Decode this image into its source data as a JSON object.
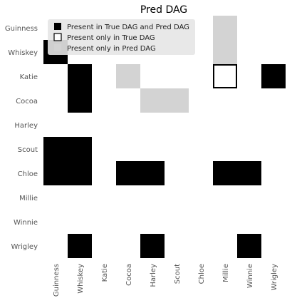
{
  "chart_data": {
    "type": "heatmap",
    "title": "Pred DAG",
    "rows": [
      "Guinness",
      "Whiskey",
      "Katie",
      "Cocoa",
      "Harley",
      "Scout",
      "Chloe",
      "Millie",
      "Winnie",
      "Wrigley"
    ],
    "columns": [
      "Guinness",
      "Whiskey",
      "Katie",
      "Cocoa",
      "Harley",
      "Scout",
      "Chloe",
      "Millie",
      "Winnie",
      "Wrigley"
    ],
    "categories": [
      {
        "code": 1,
        "label": "Present in True DAG and Pred DAG",
        "color": "#000000"
      },
      {
        "code": 2,
        "label": "Present only in True DAG",
        "color": "#ffffff"
      },
      {
        "code": 3,
        "label": "Present only in Pred DAG",
        "color": "#d3d3d3"
      }
    ],
    "cells": [
      {
        "row": "Guinness",
        "col": "Millie",
        "code": 3
      },
      {
        "row": "Whiskey",
        "col": "Guinness",
        "code": 1
      },
      {
        "row": "Whiskey",
        "col": "Millie",
        "code": 3
      },
      {
        "row": "Katie",
        "col": "Whiskey",
        "code": 1
      },
      {
        "row": "Katie",
        "col": "Cocoa",
        "code": 3
      },
      {
        "row": "Katie",
        "col": "Millie",
        "code": 2
      },
      {
        "row": "Katie",
        "col": "Wrigley",
        "code": 1
      },
      {
        "row": "Cocoa",
        "col": "Whiskey",
        "code": 1
      },
      {
        "row": "Cocoa",
        "col": "Harley",
        "code": 3
      },
      {
        "row": "Cocoa",
        "col": "Scout",
        "code": 3
      },
      {
        "row": "Scout",
        "col": "Guinness",
        "code": 1
      },
      {
        "row": "Scout",
        "col": "Whiskey",
        "code": 1
      },
      {
        "row": "Chloe",
        "col": "Guinness",
        "code": 1
      },
      {
        "row": "Chloe",
        "col": "Whiskey",
        "code": 1
      },
      {
        "row": "Chloe",
        "col": "Cocoa",
        "code": 1
      },
      {
        "row": "Chloe",
        "col": "Harley",
        "code": 1
      },
      {
        "row": "Chloe",
        "col": "Millie",
        "code": 1
      },
      {
        "row": "Chloe",
        "col": "Winnie",
        "code": 1
      },
      {
        "row": "Wrigley",
        "col": "Whiskey",
        "code": 1
      },
      {
        "row": "Wrigley",
        "col": "Harley",
        "code": 1
      },
      {
        "row": "Wrigley",
        "col": "Winnie",
        "code": 1
      }
    ],
    "grid": false,
    "legend_placement": "top-left"
  }
}
